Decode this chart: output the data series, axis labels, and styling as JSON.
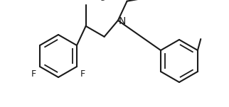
{
  "bg": "#ffffff",
  "lc": "#1a1a1a",
  "lw": 1.5,
  "dlw": 1.3,
  "r": 0.3,
  "doff": 0.055,
  "dsh": 0.14,
  "fs": 9.0,
  "figsize": [
    3.22,
    1.51
  ],
  "dpi": 100,
  "xlim": [
    0.0,
    3.22
  ],
  "ylim": [
    0.0,
    1.51
  ]
}
